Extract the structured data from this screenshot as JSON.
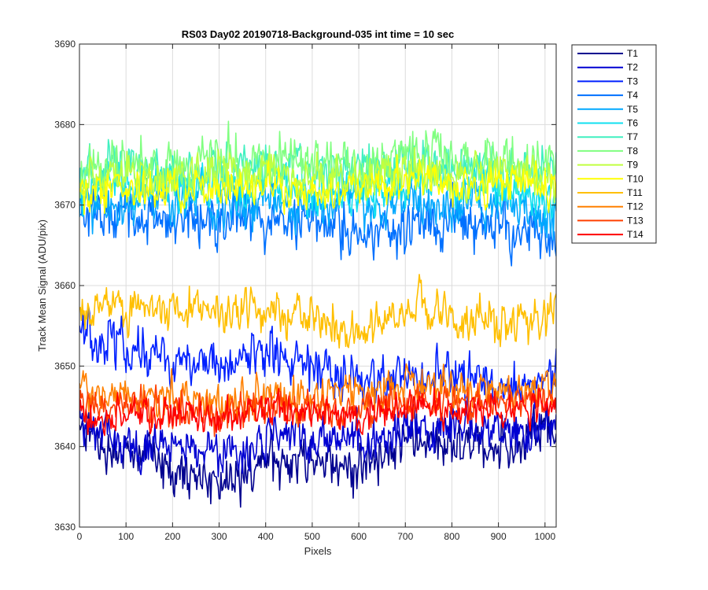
{
  "chart_data": {
    "type": "line",
    "title": "RS03 Day02 20190718-Background-035 int time = 10 sec",
    "xlabel": "Pixels",
    "ylabel": "Track Mean Signal (ADU/pix)",
    "xlim": [
      0,
      1024
    ],
    "ylim": [
      3630,
      3690
    ],
    "xticks": [
      0,
      100,
      200,
      300,
      400,
      500,
      600,
      700,
      800,
      900,
      1000
    ],
    "yticks": [
      3630,
      3640,
      3650,
      3660,
      3670,
      3680,
      3690
    ],
    "grid": true,
    "legend_position": "outside-top-right",
    "series": [
      {
        "name": "T1",
        "color": "#00008f",
        "values": [
          [
            0,
            3642
          ],
          [
            100,
            3639
          ],
          [
            200,
            3637.5
          ],
          [
            300,
            3635.5
          ],
          [
            350,
            3635.5
          ],
          [
            400,
            3638
          ],
          [
            500,
            3639
          ],
          [
            600,
            3637
          ],
          [
            700,
            3640.5
          ],
          [
            800,
            3640.5
          ],
          [
            900,
            3640
          ],
          [
            1024,
            3642
          ]
        ]
      },
      {
        "name": "T2",
        "color": "#0000d2",
        "values": [
          [
            0,
            3643
          ],
          [
            100,
            3640.5
          ],
          [
            200,
            3640
          ],
          [
            300,
            3638.5
          ],
          [
            400,
            3640.5
          ],
          [
            500,
            3641
          ],
          [
            600,
            3640.5
          ],
          [
            700,
            3642.5
          ],
          [
            800,
            3642
          ],
          [
            900,
            3641.5
          ],
          [
            1024,
            3643
          ]
        ]
      },
      {
        "name": "T3",
        "color": "#0020ff",
        "values": [
          [
            0,
            3654
          ],
          [
            100,
            3652.5
          ],
          [
            200,
            3651
          ],
          [
            300,
            3649.5
          ],
          [
            400,
            3651.5
          ],
          [
            500,
            3649.5
          ],
          [
            600,
            3648
          ],
          [
            700,
            3649
          ],
          [
            800,
            3648.5
          ],
          [
            900,
            3647.5
          ],
          [
            1024,
            3649
          ]
        ]
      },
      {
        "name": "T4",
        "color": "#0070ff",
        "values": [
          [
            0,
            3669
          ],
          [
            100,
            3669
          ],
          [
            200,
            3668.5
          ],
          [
            300,
            3668
          ],
          [
            400,
            3668.5
          ],
          [
            500,
            3668
          ],
          [
            600,
            3667
          ],
          [
            700,
            3667.5
          ],
          [
            800,
            3668
          ],
          [
            900,
            3667.5
          ],
          [
            1024,
            3666
          ]
        ]
      },
      {
        "name": "T5",
        "color": "#00a8ff",
        "values": [
          [
            0,
            3670
          ],
          [
            100,
            3670.5
          ],
          [
            200,
            3671
          ],
          [
            300,
            3670
          ],
          [
            400,
            3670.5
          ],
          [
            500,
            3670
          ],
          [
            600,
            3669.5
          ],
          [
            700,
            3670
          ],
          [
            800,
            3670.5
          ],
          [
            900,
            3670
          ],
          [
            1024,
            3669
          ]
        ]
      },
      {
        "name": "T6",
        "color": "#10e0f0",
        "values": [
          [
            0,
            3672
          ],
          [
            100,
            3672.5
          ],
          [
            200,
            3672.5
          ],
          [
            300,
            3672
          ],
          [
            400,
            3672.5
          ],
          [
            500,
            3672
          ],
          [
            600,
            3671.5
          ],
          [
            700,
            3672.5
          ],
          [
            800,
            3672.5
          ],
          [
            900,
            3672
          ],
          [
            1024,
            3671
          ]
        ]
      },
      {
        "name": "T7",
        "color": "#40f0c0",
        "values": [
          [
            0,
            3674.5
          ],
          [
            100,
            3674.5
          ],
          [
            200,
            3674
          ],
          [
            300,
            3674
          ],
          [
            400,
            3675
          ],
          [
            500,
            3674.5
          ],
          [
            600,
            3674
          ],
          [
            700,
            3675
          ],
          [
            800,
            3675
          ],
          [
            900,
            3674.5
          ],
          [
            1024,
            3674
          ]
        ]
      },
      {
        "name": "T8",
        "color": "#80ff80",
        "values": [
          [
            0,
            3675
          ],
          [
            100,
            3675
          ],
          [
            200,
            3674.5
          ],
          [
            300,
            3675.5
          ],
          [
            400,
            3676
          ],
          [
            500,
            3675
          ],
          [
            600,
            3675
          ],
          [
            700,
            3676
          ],
          [
            800,
            3675.5
          ],
          [
            900,
            3675.5
          ],
          [
            1024,
            3675
          ]
        ]
      },
      {
        "name": "T9",
        "color": "#c0ff40",
        "values": [
          [
            0,
            3673
          ],
          [
            100,
            3673.5
          ],
          [
            200,
            3673.5
          ],
          [
            300,
            3673.5
          ],
          [
            400,
            3674
          ],
          [
            500,
            3673.5
          ],
          [
            600,
            3673
          ],
          [
            700,
            3674.5
          ],
          [
            800,
            3674
          ],
          [
            900,
            3674
          ],
          [
            1024,
            3673.5
          ]
        ]
      },
      {
        "name": "T10",
        "color": "#ffff00",
        "values": [
          [
            0,
            3671.5
          ],
          [
            100,
            3672
          ],
          [
            200,
            3672
          ],
          [
            300,
            3672
          ],
          [
            400,
            3672.5
          ],
          [
            500,
            3672
          ],
          [
            600,
            3671.5
          ],
          [
            700,
            3673
          ],
          [
            800,
            3672.5
          ],
          [
            900,
            3672.5
          ],
          [
            1024,
            3672.5
          ]
        ]
      },
      {
        "name": "T11",
        "color": "#ffbf00",
        "values": [
          [
            0,
            3657.5
          ],
          [
            100,
            3657
          ],
          [
            200,
            3657
          ],
          [
            300,
            3656.5
          ],
          [
            400,
            3657
          ],
          [
            500,
            3655.5
          ],
          [
            600,
            3654.5
          ],
          [
            700,
            3657
          ],
          [
            800,
            3656.5
          ],
          [
            900,
            3655
          ],
          [
            1024,
            3656
          ]
        ]
      },
      {
        "name": "T12",
        "color": "#ff8000",
        "values": [
          [
            0,
            3647
          ],
          [
            100,
            3646.5
          ],
          [
            200,
            3646
          ],
          [
            300,
            3645.5
          ],
          [
            400,
            3646.5
          ],
          [
            500,
            3646
          ],
          [
            600,
            3646.5
          ],
          [
            700,
            3647.5
          ],
          [
            800,
            3647.5
          ],
          [
            900,
            3647
          ],
          [
            1024,
            3648
          ]
        ]
      },
      {
        "name": "T13",
        "color": "#ff4000",
        "values": [
          [
            0,
            3645
          ],
          [
            100,
            3645
          ],
          [
            200,
            3644.5
          ],
          [
            300,
            3644
          ],
          [
            400,
            3645
          ],
          [
            500,
            3644.5
          ],
          [
            600,
            3644.5
          ],
          [
            700,
            3645.5
          ],
          [
            800,
            3645.5
          ],
          [
            900,
            3645.5
          ],
          [
            1024,
            3646
          ]
        ]
      },
      {
        "name": "T14",
        "color": "#ff0000",
        "values": [
          [
            0,
            3643.5
          ],
          [
            100,
            3644
          ],
          [
            200,
            3644
          ],
          [
            300,
            3643.5
          ],
          [
            400,
            3644.5
          ],
          [
            500,
            3644
          ],
          [
            600,
            3644
          ],
          [
            700,
            3645
          ],
          [
            800,
            3645
          ],
          [
            900,
            3645
          ],
          [
            1024,
            3645.5
          ]
        ]
      }
    ],
    "noise_amplitude": {
      "T1": 2.2,
      "T2": 2.0,
      "T3": 2.2,
      "T4": 2.5,
      "T5": 2.2,
      "T6": 2.0,
      "T7": 2.2,
      "T8": 2.4,
      "T9": 2.0,
      "T10": 1.8,
      "T11": 2.0,
      "T12": 1.8,
      "T13": 1.6,
      "T14": 1.5
    }
  }
}
